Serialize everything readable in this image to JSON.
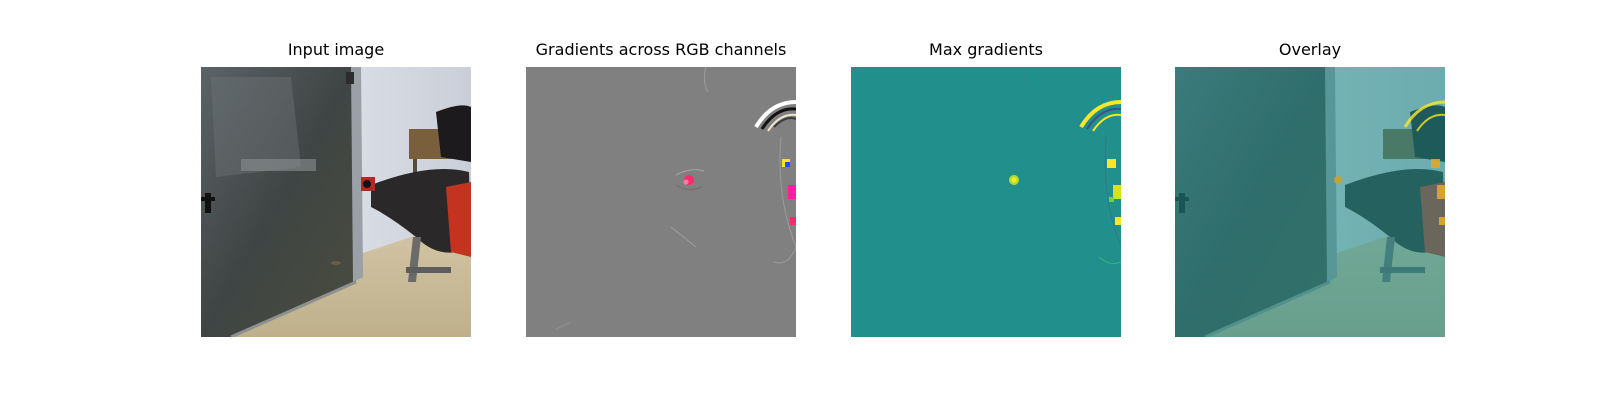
{
  "panels": [
    {
      "title": "Input image"
    },
    {
      "title": "Gradients across RGB channels"
    },
    {
      "title": "Max gradients"
    },
    {
      "title": "Overlay"
    }
  ],
  "colors": {
    "gradient_background": "#808080",
    "max_gradient_background": "#21908d",
    "highlight_yellow": "#f5e61f",
    "highlight_magenta": "#ff2a6d"
  }
}
